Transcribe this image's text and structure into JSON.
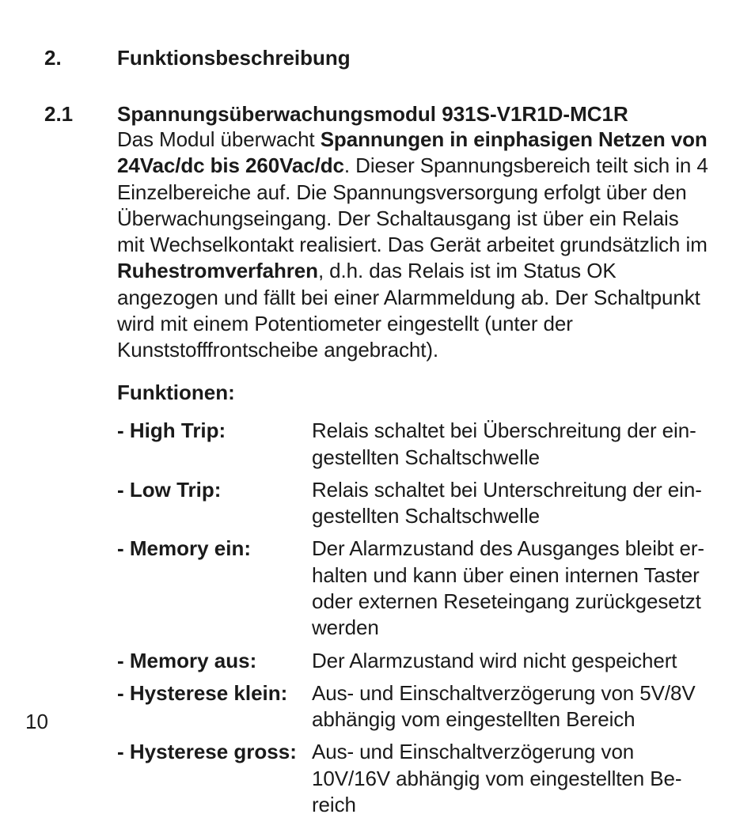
{
  "page": {
    "number": "10",
    "background": "#ffffff",
    "text_color": "#1a1a1a",
    "font_family": "Helvetica",
    "font_size_pt": 26
  },
  "section_main": {
    "number": "2.",
    "title": "Funktionsbeschreibung"
  },
  "section_sub": {
    "number": "2.1",
    "title": "Spannungsüberwachungsmodul 931S-V1R1D-MC1R",
    "body_pre": "Das Modul überwacht ",
    "body_bold1": "Spannungen in einphasigen Netzen von 24Vac/dc bis 260Vac/dc",
    "body_mid": ". Dieser Spannungsbereich teilt sich in 4 Einzelbereiche auf. Die Spannungsversorgung erfolgt über den Überwachungseingang. Der Schaltausgang ist über ein Relais mit Wechselkontakt realisiert. Das Gerät arbeitet grundsätzlich im ",
    "body_bold2": "Ruhestromverfahren",
    "body_post": ", d.h. das Relais ist im Status OK angezogen und fällt bei einer Alarmmeldung ab. Der Schaltpunkt wird mit einem Potentiometer eingestellt (unter der Kunststofffrontscheibe angebracht)."
  },
  "functions_title": "Funktionen:",
  "functions": [
    {
      "label": "- High Trip:",
      "desc": "Relais schaltet bei Überschreitung der ein­gestellten Schaltschwelle"
    },
    {
      "label": "- Low Trip:",
      "desc": "Relais schaltet bei Unterschreitung der ein­gestellten Schaltschwelle"
    },
    {
      "label": "- Memory ein:",
      "desc": "Der Alarmzustand des Ausganges bleibt er­halten und kann über einen internen Taster oder externen Reseteingang zurückgesetzt werden"
    },
    {
      "label": "- Memory aus:",
      "desc": "Der Alarmzustand wird nicht gespeichert"
    },
    {
      "label": "- Hysterese klein:",
      "desc": "Aus- und Einschaltverzögerung von 5V/8V abhängig vom eingestellten Bereich"
    },
    {
      "label": "- Hysterese gross:",
      "desc": "Aus- und Einschaltverzögerung von 10V/16V abhängig vom eingestellten Be­reich"
    }
  ]
}
